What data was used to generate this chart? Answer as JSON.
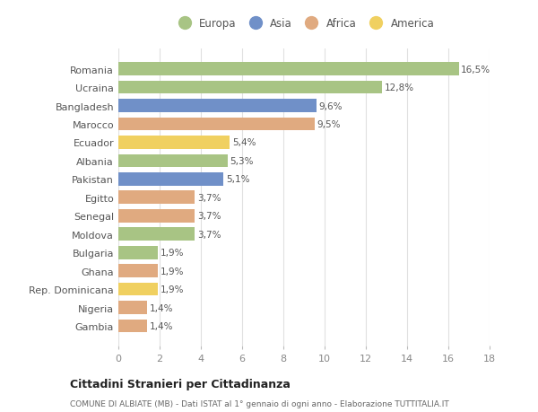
{
  "countries": [
    "Romania",
    "Ucraina",
    "Bangladesh",
    "Marocco",
    "Ecuador",
    "Albania",
    "Pakistan",
    "Egitto",
    "Senegal",
    "Moldova",
    "Bulgaria",
    "Ghana",
    "Rep. Dominicana",
    "Nigeria",
    "Gambia"
  ],
  "values": [
    16.5,
    12.8,
    9.6,
    9.5,
    5.4,
    5.3,
    5.1,
    3.7,
    3.7,
    3.7,
    1.9,
    1.9,
    1.9,
    1.4,
    1.4
  ],
  "labels": [
    "16,5%",
    "12,8%",
    "9,6%",
    "9,5%",
    "5,4%",
    "5,3%",
    "5,1%",
    "3,7%",
    "3,7%",
    "3,7%",
    "1,9%",
    "1,9%",
    "1,9%",
    "1,4%",
    "1,4%"
  ],
  "continents": [
    "Europa",
    "Europa",
    "Asia",
    "Africa",
    "America",
    "Europa",
    "Asia",
    "Africa",
    "Africa",
    "Europa",
    "Europa",
    "Africa",
    "America",
    "Africa",
    "Africa"
  ],
  "colors": {
    "Europa": "#a8c484",
    "Asia": "#7090c8",
    "Africa": "#e0aa80",
    "America": "#f0d060"
  },
  "legend_order": [
    "Europa",
    "Asia",
    "Africa",
    "America"
  ],
  "xlim": [
    0,
    18
  ],
  "xticks": [
    0,
    2,
    4,
    6,
    8,
    10,
    12,
    14,
    16,
    18
  ],
  "title": "Cittadini Stranieri per Cittadinanza",
  "subtitle": "COMUNE DI ALBIATE (MB) - Dati ISTAT al 1° gennaio di ogni anno - Elaborazione TUTTITALIA.IT",
  "background_color": "#ffffff",
  "grid_color": "#e0e0e0"
}
